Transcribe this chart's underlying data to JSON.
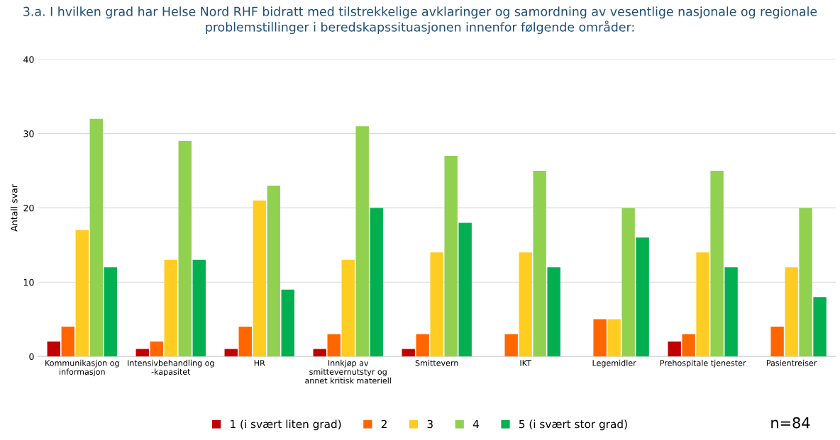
{
  "chart_data": {
    "type": "bar",
    "title": "3.a. I hvilken grad har Helse Nord RHF bidratt med tilstrekkelige avklaringer og samordning av vesentlige nasjonale og regionale problemstillinger i beredskapssituasjonen innenfor følgende områder:",
    "ylabel": "Antall svar",
    "categories": [
      "Kommunikasjon og\ninformasjon",
      "Intensivbehandling og\n-kapasitet",
      "HR",
      "Innkjøp av\nsmittevernutstyr og\nannet kritisk materiell",
      "Smittevern",
      "IKT",
      "Legemidler",
      "Prehospitale tjenester",
      "Pasientreiser"
    ],
    "series": [
      {
        "name": "1 (i svært liten grad)",
        "color": "#c00000",
        "values": [
          2,
          1,
          1,
          1,
          1,
          0,
          0,
          2,
          0
        ]
      },
      {
        "name": "2",
        "color": "#ff6600",
        "values": [
          4,
          2,
          4,
          3,
          3,
          3,
          5,
          3,
          4
        ]
      },
      {
        "name": "3",
        "color": "#ffcc22",
        "values": [
          17,
          13,
          21,
          13,
          14,
          14,
          5,
          14,
          12
        ]
      },
      {
        "name": "4",
        "color": "#92d050",
        "values": [
          32,
          29,
          23,
          31,
          27,
          25,
          20,
          25,
          20
        ]
      },
      {
        "name": "5 (i svært stor grad)",
        "color": "#00b050",
        "values": [
          12,
          13,
          9,
          20,
          18,
          12,
          16,
          12,
          8
        ]
      }
    ],
    "ylim": [
      0,
      40
    ],
    "yticks": [
      0,
      10,
      20,
      30,
      40
    ],
    "grid": "y",
    "legend": "bottom",
    "annotations": [
      "n=84"
    ]
  }
}
